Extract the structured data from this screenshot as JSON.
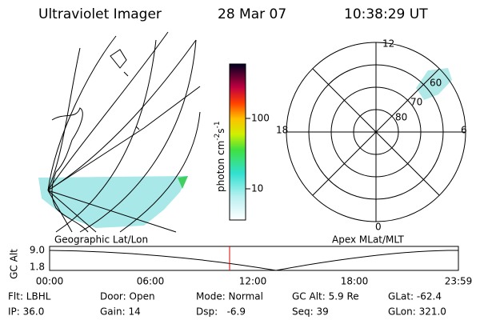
{
  "header": {
    "title": "Ultraviolet Imager",
    "date": "28 Mar 07",
    "time": "10:38:29 UT"
  },
  "colorbar": {
    "unit": [
      "photon cm",
      "-2",
      "s",
      "-1"
    ],
    "labels": [
      "100",
      "10"
    ]
  },
  "polar": {
    "mlt": [
      "12",
      "18",
      "6",
      "0"
    ],
    "mlat": [
      "80",
      "70",
      "60"
    ]
  },
  "panels": [
    "Geographic Lat/Lon",
    "Apex MLat/MLT"
  ],
  "altitude_plot": {
    "axis_label": "GC Alt",
    "y_labels": [
      "9.0",
      "1.8"
    ],
    "x_labels": [
      "00:00",
      "06:00",
      "12:00",
      "18:00",
      "23:59"
    ]
  },
  "info": {
    "rows": [
      [
        "Flt: LBHL",
        "Door: Open",
        "Mode: Normal",
        "GC Alt: 5.9 Re",
        "GLat: -62.4"
      ],
      [
        "IP: 36.0",
        "Gain: 14",
        "Dsp:   -6.9",
        "Seq: 39",
        "GLon: 321.0"
      ]
    ]
  }
}
